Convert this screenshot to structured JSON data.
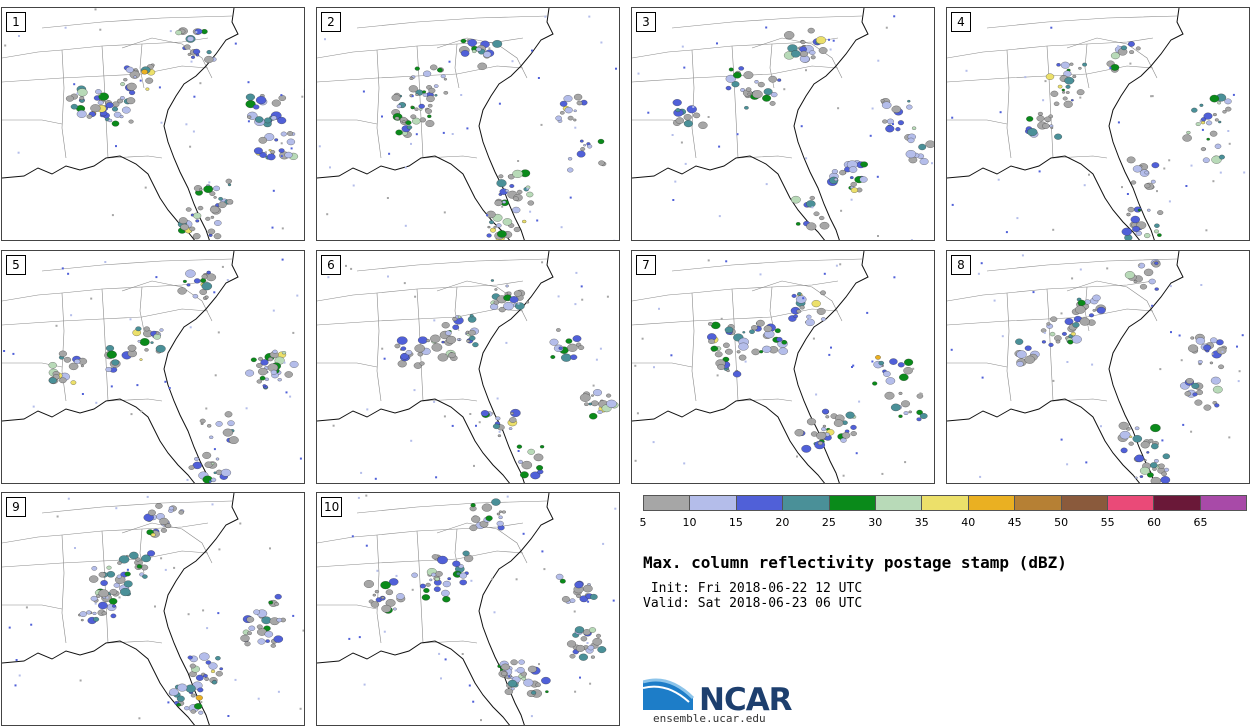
{
  "panels": [
    {
      "label": "1"
    },
    {
      "label": "2"
    },
    {
      "label": "3"
    },
    {
      "label": "4"
    },
    {
      "label": "5"
    },
    {
      "label": "6"
    },
    {
      "label": "7"
    },
    {
      "label": "8"
    },
    {
      "label": "9"
    },
    {
      "label": "10"
    }
  ],
  "colorbar": {
    "colors": [
      "#a6a6a6",
      "#b4bdea",
      "#5060d8",
      "#4a9098",
      "#0a8a1a",
      "#b8dab8",
      "#ece06a",
      "#eab022",
      "#b68034",
      "#8a5a3c",
      "#ea4a78",
      "#6a1838",
      "#a84aa8"
    ],
    "ticks": [
      "5",
      "10",
      "15",
      "20",
      "25",
      "30",
      "35",
      "40",
      "45",
      "50",
      "55",
      "60",
      "65"
    ]
  },
  "title": "Max. column reflectivity postage stamp (dBZ)",
  "init": " Init: Fri 2018-06-22 12 UTC",
  "valid": "Valid: Sat 2018-06-23 06 UTC",
  "logo": {
    "text": "NCAR",
    "url": "ensemble.ucar.edu"
  }
}
